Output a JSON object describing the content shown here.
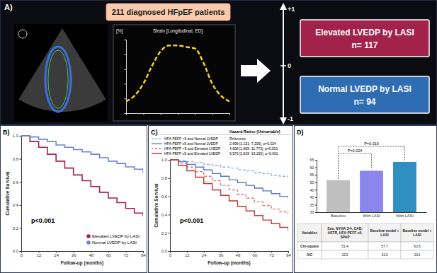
{
  "panel_labels": [
    "A)",
    "B)",
    "C)",
    "D)"
  ],
  "panel_a": {
    "cohort": "211 diagnosed HFpEF patients",
    "scale_labels": [
      "+1",
      "0",
      "-1"
    ],
    "groups": [
      {
        "label": "Elevated LVEDP by LASI",
        "n": "n= 117",
        "color": "#a3224c"
      },
      {
        "label": "Normal LVEDP by LASI",
        "n": "n= 94",
        "color": "#2e6db4"
      }
    ]
  },
  "chart_data": [
    {
      "type": "line",
      "title": "Strain [Longitudinal, ED]",
      "ylabel": "[%]",
      "x": [
        0,
        1,
        2,
        3,
        4,
        5,
        6,
        7,
        8,
        9,
        10,
        11,
        12
      ],
      "series": [
        {
          "values": [
            -1,
            1,
            5,
            11,
            16,
            18,
            18,
            17.5,
            17,
            12,
            5,
            1,
            -1
          ],
          "color": "#f2d024",
          "line_style": "dashed"
        }
      ],
      "xlim": [
        0,
        12
      ],
      "xticks": [
        0,
        2,
        4,
        6,
        8,
        10,
        12
      ],
      "ylim": [
        -5,
        20
      ],
      "yticks": [
        0,
        5,
        10,
        15,
        20
      ],
      "tick_labels": false
    },
    {
      "type": "line",
      "xlabel": "Follow-up (months)",
      "ylabel": "Cumulative Survival",
      "annotations": [
        "p<0.001"
      ],
      "x": [
        0,
        6,
        12,
        18,
        24,
        30,
        36,
        42,
        48,
        54,
        60,
        66,
        72,
        78,
        84
      ],
      "series": [
        {
          "name": "Elevated LVEDP by LASI",
          "color": "#a3224c",
          "line_style": "solid",
          "values": [
            1.0,
            0.95,
            0.9,
            0.84,
            0.78,
            0.72,
            0.66,
            0.61,
            0.56,
            0.51,
            0.46,
            0.42,
            0.37,
            0.33,
            0.3
          ]
        },
        {
          "name": "Normal LVEDP by LASI",
          "color": "#6a85d6",
          "line_style": "solid",
          "values": [
            1.0,
            0.99,
            0.97,
            0.95,
            0.92,
            0.9,
            0.88,
            0.86,
            0.84,
            0.81,
            0.78,
            0.76,
            0.73,
            0.71,
            0.68
          ]
        }
      ],
      "xlim": [
        0,
        84
      ],
      "xticks": [
        0,
        12,
        24,
        36,
        48,
        60,
        72,
        84
      ],
      "ylim": [
        0,
        1
      ],
      "yticks": [
        {
          "value": 0,
          "label": "0.0"
        },
        {
          "value": 0.2,
          "label": "0.2"
        },
        {
          "value": 0.4,
          "label": "0.4"
        },
        {
          "value": 0.6,
          "label": "0.6"
        },
        {
          "value": 0.8,
          "label": "0.8"
        },
        {
          "value": 1,
          "label": "1.0"
        }
      ],
      "legend": "lower right",
      "grid": false
    },
    {
      "type": "line",
      "xlabel": "Follow-up (months)",
      "ylabel": "Cumulative Survival",
      "annotations": [
        "p<0.001"
      ],
      "hazard_ratio_title": "Hazard Ratios (Univariable)",
      "hazard_ratios": [
        "Reference",
        "2.699 [1.131- 7.205], p=0.024",
        "4.608 [1.869- 11.773], p=0.001",
        "6.570 [2.819- 15.190], p<0.001"
      ],
      "x": [
        0,
        6,
        12,
        18,
        24,
        30,
        36,
        42,
        48,
        54,
        60,
        66,
        72,
        78,
        84
      ],
      "series": [
        {
          "name": "HFA-PEFF <5 and Normal LVEDP",
          "color": "#8fb0e8",
          "line_style": "dashed",
          "values": [
            1,
            0.99,
            0.98,
            0.97,
            0.95,
            0.94,
            0.92,
            0.91,
            0.89,
            0.88,
            0.86,
            0.85,
            0.83,
            0.82,
            0.8
          ]
        },
        {
          "name": "HFA-PEFF ≥5 and Normal LVEDP",
          "color": "#5677c9",
          "line_style": "solid",
          "values": [
            1,
            0.98,
            0.95,
            0.92,
            0.89,
            0.85,
            0.82,
            0.78,
            0.75,
            0.72,
            0.69,
            0.66,
            0.63,
            0.6,
            0.58
          ]
        },
        {
          "name": "HFA-PEFF <5 and Elevated LVEDP",
          "color": "#e07a7a",
          "line_style": "dashed",
          "values": [
            1,
            0.96,
            0.92,
            0.87,
            0.82,
            0.77,
            0.72,
            0.67,
            0.62,
            0.58,
            0.54,
            0.5,
            0.46,
            0.43,
            0.4
          ]
        },
        {
          "name": "HFA-PEFF ≥5 and Elevated LVEDP",
          "color": "#c0392b",
          "line_style": "solid",
          "values": [
            1,
            0.94,
            0.88,
            0.81,
            0.74,
            0.67,
            0.61,
            0.55,
            0.49,
            0.44,
            0.39,
            0.34,
            0.3,
            0.26,
            0.22
          ]
        }
      ],
      "xlim": [
        0,
        84
      ],
      "xticks": [
        0,
        12,
        24,
        36,
        48,
        60,
        72,
        84
      ],
      "ylim": [
        0,
        1
      ],
      "yticks": [
        {
          "value": 0,
          "label": "0.0"
        },
        {
          "value": 0.2,
          "label": "0.2"
        },
        {
          "value": 0.4,
          "label": "0.4"
        },
        {
          "value": 0.6,
          "label": "0.6"
        },
        {
          "value": 0.8,
          "label": "0.8"
        },
        {
          "value": 1,
          "label": "1.0"
        }
      ],
      "legend": "top",
      "grid": false
    },
    {
      "type": "bar",
      "categories": [
        "Baseline",
        "With LASI",
        "With LASI"
      ],
      "values": [
        51.4,
        57.7,
        63.6
      ],
      "colors": [
        "#bfbfbf",
        "#8a86ee",
        "#2f8fc0"
      ],
      "ylim": [
        30,
        65
      ],
      "yticks": [
        30,
        35,
        40,
        45,
        50,
        55,
        60,
        65
      ],
      "grid": false,
      "comparisons": [
        {
          "from": 0,
          "to": 1,
          "label": "P=0.024"
        },
        {
          "from": 0,
          "to": 2,
          "label": "P=0.010"
        }
      ],
      "table": {
        "rows": [
          [
            "Variables",
            "Sex, NYHA 3-4, CAD, ASTR, HFA-PEFF ≥5, SPAP",
            "Baseline model + LASI",
            "Baseline model + LASI"
          ],
          [
            "Chi-square",
            "51.4",
            "57.7",
            "63.6"
          ],
          [
            "AIC",
            "223",
            "213",
            "210"
          ]
        ]
      }
    }
  ]
}
